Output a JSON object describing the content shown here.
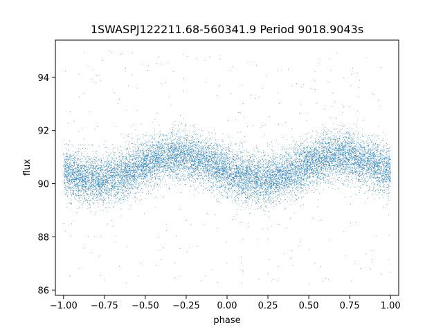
{
  "chart_data": {
    "type": "scatter",
    "title": "1SWASPJ122211.68-560341.9 Period 9018.9043s",
    "xlabel": "phase",
    "ylabel": "flux",
    "xlim": [
      -1.05,
      1.05
    ],
    "ylim": [
      85.8,
      95.4
    ],
    "xticks": [
      -1.0,
      -0.75,
      -0.5,
      -0.25,
      0.0,
      0.25,
      0.5,
      0.75,
      1.0
    ],
    "xtick_labels": [
      "−1.00",
      "−0.75",
      "−0.50",
      "−0.25",
      "0.00",
      "0.25",
      "0.50",
      "0.75",
      "1.00"
    ],
    "yticks": [
      86,
      88,
      90,
      92,
      94
    ],
    "ytick_labels": [
      "86",
      "88",
      "90",
      "92",
      "94"
    ],
    "grid": false,
    "legend": "none",
    "marker_color": "#1f77b4",
    "series": [
      {
        "phase_range": [
          -1.0,
          1.0
        ],
        "points": 14000,
        "model": "sinusoid",
        "mean_flux": 90.6,
        "amplitude": 0.45,
        "min_phase": 0.2,
        "max_phase": 0.7,
        "scatter_sigma": 0.45,
        "outlier_range": [
          86.2,
          95.1
        ]
      }
    ]
  }
}
